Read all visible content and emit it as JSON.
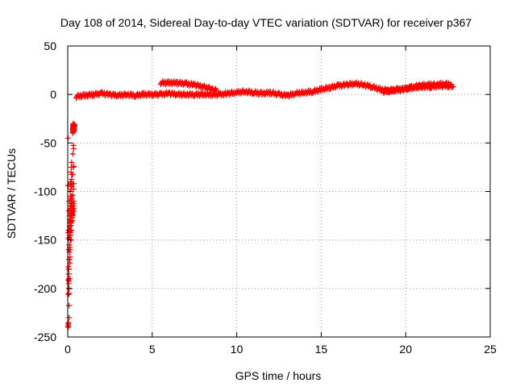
{
  "chart_data": {
    "type": "scatter",
    "title": "Day 108 of 2014, Sidereal Day-to-day VTEC variation (SDTVAR) for receiver p367",
    "xlabel": "GPS time / hours",
    "ylabel": "SDTVAR / TECUs",
    "xlim": [
      0,
      25
    ],
    "ylim": [
      -250,
      50
    ],
    "xticks": [
      0,
      5,
      10,
      15,
      20,
      25
    ],
    "yticks": [
      -250,
      -200,
      -150,
      -100,
      -50,
      0,
      50
    ],
    "grid": true,
    "marker": "+",
    "colors": {
      "series": "#ff0000",
      "grid": "#a0a0a0",
      "axis": "#000000"
    },
    "series": [
      {
        "name": "SDTVAR",
        "x": [
          0.02,
          0.03,
          0.04,
          0.05,
          0.06,
          0.07,
          0.08,
          0.09,
          0.1,
          0.11,
          0.12,
          0.13,
          0.14,
          0.15,
          0.16,
          0.17,
          0.18,
          0.19,
          0.2,
          0.21,
          0.22,
          0.23,
          0.24,
          0.25,
          0.26,
          0.27,
          0.28,
          0.29,
          0.3,
          0.31,
          0.32,
          0.33,
          0.34,
          0.35,
          0.36,
          0.37,
          0.38,
          0.39,
          0.4
        ],
        "y": [
          -45,
          -240,
          -235,
          -120,
          -200,
          -180,
          -230,
          -110,
          -170,
          -140,
          -125,
          -190,
          -100,
          -160,
          -90,
          -150,
          -130,
          -80,
          -150,
          -75,
          -140,
          -70,
          -120,
          -115,
          -110,
          -130,
          -118,
          -125,
          -40,
          -36,
          -33,
          -30,
          -120,
          -110,
          -38,
          -35,
          -33,
          -32,
          -31
        ]
      },
      {
        "name": "SDTVAR",
        "x": [
          0.5,
          1.0,
          1.5,
          2.0,
          2.5,
          3.0,
          3.5,
          4.0,
          4.5,
          5.0,
          5.5,
          6.0,
          6.5,
          7.0,
          7.5,
          8.0,
          8.5,
          9.0,
          9.5,
          10.0,
          10.5,
          11.0,
          11.5,
          12.0,
          12.5,
          13.0,
          13.5,
          14.0,
          14.5,
          15.0,
          15.5,
          16.0,
          16.5,
          17.0,
          17.5,
          18.0,
          18.5,
          19.0,
          19.5,
          20.0,
          20.5,
          21.0,
          21.5,
          22.0,
          22.5,
          22.8
        ],
        "y": [
          -2,
          -1,
          0,
          1,
          0,
          -1,
          0,
          -1,
          0,
          0,
          0,
          1,
          0,
          0,
          0,
          0,
          0,
          0,
          1,
          2,
          3,
          2,
          1,
          2,
          0,
          -1,
          1,
          2,
          3,
          5,
          7,
          9,
          10,
          11,
          10,
          8,
          5,
          4,
          5,
          6,
          7,
          8,
          8,
          9,
          9,
          8
        ]
      },
      {
        "name": "SDTVAR",
        "x": [
          5.5,
          6.0,
          6.5,
          7.0,
          7.5,
          8.0,
          8.5,
          8.8
        ],
        "y": [
          12,
          12,
          12,
          11,
          10,
          8,
          6,
          4
        ]
      },
      {
        "name": "SDTVAR",
        "x": [
          18.7,
          19.2,
          19.8,
          20.3,
          20.8,
          21.3,
          21.8,
          22.3,
          22.7
        ],
        "y": [
          3,
          4,
          5,
          7,
          9,
          10,
          10,
          11,
          10
        ]
      }
    ]
  }
}
